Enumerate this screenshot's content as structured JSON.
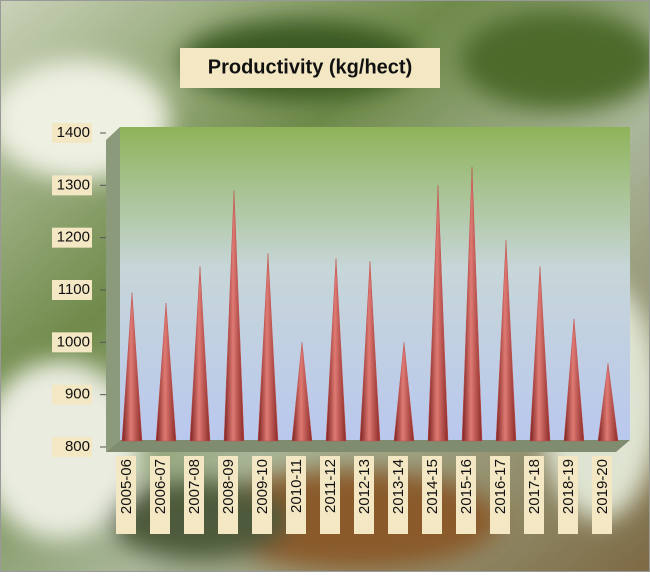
{
  "chart_data": {
    "type": "cone",
    "title": "Productivity (kg/hect)",
    "categories": [
      "2005-06",
      "2006-07",
      "2007-08",
      "2008-09",
      "2009-10",
      "2010-11",
      "2011-12",
      "2012-13",
      "2013-14",
      "2014-15",
      "2015-16",
      "2016-17",
      "2017-18",
      "2018-19",
      "2019-20"
    ],
    "values": [
      1095,
      1075,
      1145,
      1290,
      1170,
      1000,
      1160,
      1155,
      1000,
      1300,
      1335,
      1195,
      1145,
      1045,
      960
    ],
    "color": "#c0504d",
    "ylim": [
      800,
      1400
    ],
    "yticks": [
      800,
      900,
      1000,
      1100,
      1200,
      1300,
      1400
    ],
    "grid": false
  }
}
